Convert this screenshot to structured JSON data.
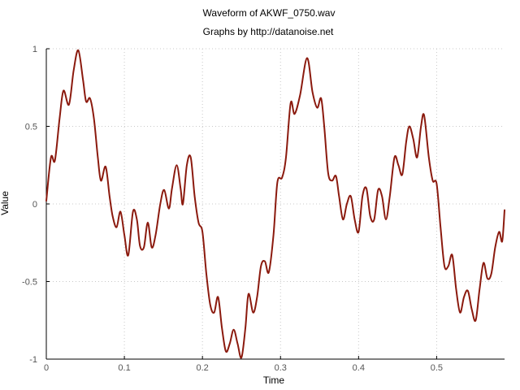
{
  "chart_data": {
    "type": "line",
    "title": "Waveform of AKWF_0750.wav",
    "subtitle": "Graphs by http://datanoise.net",
    "xlabel": "Time",
    "ylabel": "Value",
    "xlim": [
      0,
      0.587
    ],
    "ylim": [
      -1,
      1
    ],
    "xticks": [
      {
        "value": 0,
        "label": "0"
      },
      {
        "value": 0.1,
        "label": "0.1"
      },
      {
        "value": 0.2,
        "label": "0.2"
      },
      {
        "value": 0.3,
        "label": "0.3"
      },
      {
        "value": 0.4,
        "label": "0.4"
      },
      {
        "value": 0.5,
        "label": "0.5"
      }
    ],
    "yticks": [
      {
        "value": -1,
        "label": "-1"
      },
      {
        "value": -0.5,
        "label": "-0.5"
      },
      {
        "value": 0,
        "label": "0"
      },
      {
        "value": 0.5,
        "label": "0.5"
      },
      {
        "value": 1,
        "label": "1"
      }
    ],
    "grid": true,
    "line_color": "#8b1a0e",
    "series": [
      {
        "values": [
          [
            0.0,
            0.02
          ],
          [
            0.006,
            0.3
          ],
          [
            0.011,
            0.28
          ],
          [
            0.017,
            0.55
          ],
          [
            0.022,
            0.73
          ],
          [
            0.029,
            0.64
          ],
          [
            0.035,
            0.86
          ],
          [
            0.041,
            0.99
          ],
          [
            0.047,
            0.8
          ],
          [
            0.051,
            0.66
          ],
          [
            0.056,
            0.68
          ],
          [
            0.061,
            0.55
          ],
          [
            0.066,
            0.3
          ],
          [
            0.07,
            0.15
          ],
          [
            0.076,
            0.24
          ],
          [
            0.081,
            0.05
          ],
          [
            0.085,
            -0.08
          ],
          [
            0.09,
            -0.15
          ],
          [
            0.095,
            -0.05
          ],
          [
            0.1,
            -0.2
          ],
          [
            0.105,
            -0.33
          ],
          [
            0.111,
            -0.05
          ],
          [
            0.116,
            -0.1
          ],
          [
            0.12,
            -0.27
          ],
          [
            0.125,
            -0.28
          ],
          [
            0.13,
            -0.12
          ],
          [
            0.135,
            -0.28
          ],
          [
            0.14,
            -0.2
          ],
          [
            0.146,
            0.0
          ],
          [
            0.151,
            0.09
          ],
          [
            0.157,
            -0.03
          ],
          [
            0.161,
            0.1
          ],
          [
            0.167,
            0.25
          ],
          [
            0.172,
            0.1
          ],
          [
            0.175,
            0.0
          ],
          [
            0.18,
            0.25
          ],
          [
            0.185,
            0.3
          ],
          [
            0.19,
            0.05
          ],
          [
            0.195,
            -0.12
          ],
          [
            0.2,
            -0.18
          ],
          [
            0.205,
            -0.45
          ],
          [
            0.21,
            -0.65
          ],
          [
            0.215,
            -0.7
          ],
          [
            0.22,
            -0.6
          ],
          [
            0.225,
            -0.8
          ],
          [
            0.23,
            -0.95
          ],
          [
            0.235,
            -0.9
          ],
          [
            0.24,
            -0.81
          ],
          [
            0.245,
            -0.9
          ],
          [
            0.25,
            -0.99
          ],
          [
            0.255,
            -0.8
          ],
          [
            0.259,
            -0.58
          ],
          [
            0.265,
            -0.7
          ],
          [
            0.27,
            -0.6
          ],
          [
            0.275,
            -0.4
          ],
          [
            0.28,
            -0.37
          ],
          [
            0.285,
            -0.44
          ],
          [
            0.291,
            -0.2
          ],
          [
            0.296,
            0.14
          ],
          [
            0.302,
            0.17
          ],
          [
            0.307,
            0.3
          ],
          [
            0.313,
            0.65
          ],
          [
            0.318,
            0.58
          ],
          [
            0.325,
            0.7
          ],
          [
            0.334,
            0.94
          ],
          [
            0.341,
            0.72
          ],
          [
            0.347,
            0.62
          ],
          [
            0.352,
            0.68
          ],
          [
            0.356,
            0.5
          ],
          [
            0.361,
            0.2
          ],
          [
            0.366,
            0.15
          ],
          [
            0.371,
            0.18
          ],
          [
            0.375,
            0.05
          ],
          [
            0.38,
            -0.1
          ],
          [
            0.385,
            0.0
          ],
          [
            0.39,
            0.05
          ],
          [
            0.395,
            -0.1
          ],
          [
            0.4,
            -0.18
          ],
          [
            0.405,
            0.05
          ],
          [
            0.41,
            0.1
          ],
          [
            0.415,
            -0.08
          ],
          [
            0.42,
            -0.1
          ],
          [
            0.425,
            0.09
          ],
          [
            0.43,
            0.05
          ],
          [
            0.435,
            -0.1
          ],
          [
            0.44,
            0.05
          ],
          [
            0.446,
            0.3
          ],
          [
            0.451,
            0.25
          ],
          [
            0.456,
            0.19
          ],
          [
            0.461,
            0.4
          ],
          [
            0.465,
            0.5
          ],
          [
            0.47,
            0.42
          ],
          [
            0.475,
            0.3
          ],
          [
            0.48,
            0.5
          ],
          [
            0.484,
            0.57
          ],
          [
            0.49,
            0.3
          ],
          [
            0.495,
            0.15
          ],
          [
            0.5,
            0.13
          ],
          [
            0.505,
            -0.15
          ],
          [
            0.51,
            -0.4
          ],
          [
            0.515,
            -0.4
          ],
          [
            0.52,
            -0.33
          ],
          [
            0.525,
            -0.55
          ],
          [
            0.53,
            -0.7
          ],
          [
            0.535,
            -0.6
          ],
          [
            0.54,
            -0.56
          ],
          [
            0.545,
            -0.68
          ],
          [
            0.55,
            -0.75
          ],
          [
            0.555,
            -0.55
          ],
          [
            0.56,
            -0.38
          ],
          [
            0.565,
            -0.48
          ],
          [
            0.57,
            -0.45
          ],
          [
            0.575,
            -0.28
          ],
          [
            0.58,
            -0.18
          ],
          [
            0.584,
            -0.24
          ],
          [
            0.587,
            -0.04
          ]
        ]
      }
    ]
  }
}
